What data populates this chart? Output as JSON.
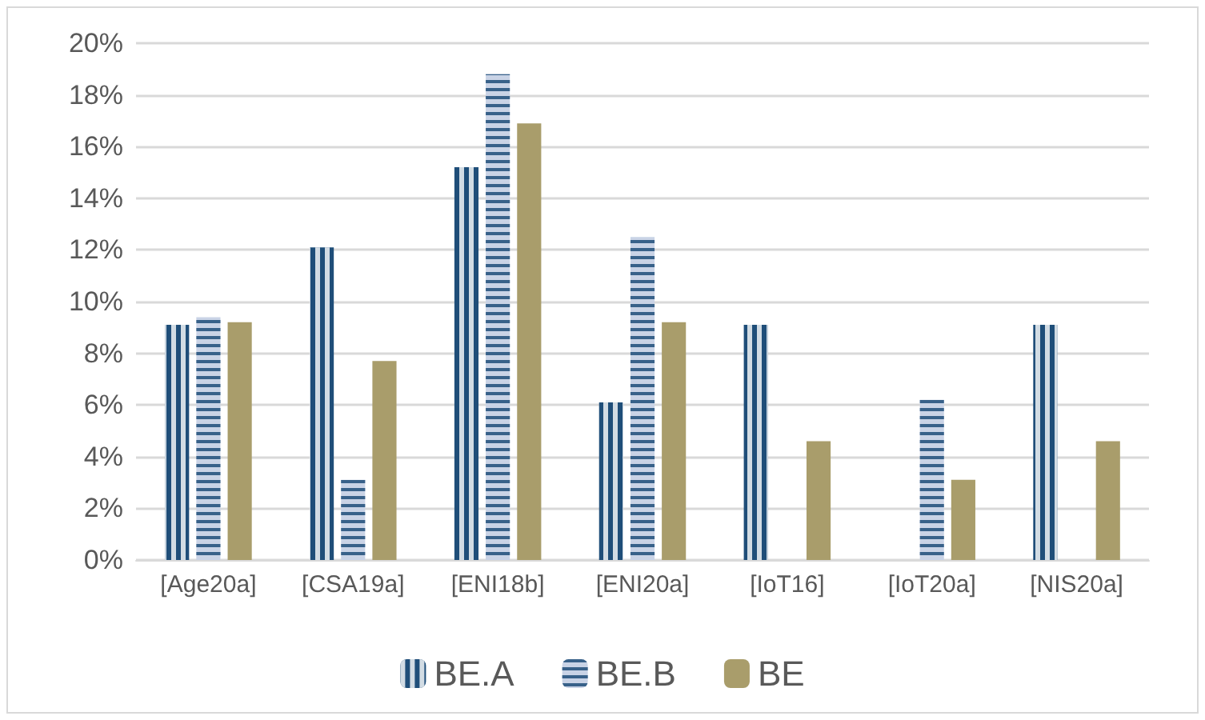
{
  "chart_data": {
    "type": "bar",
    "categories": [
      "[Age20a]",
      "[CSA19a]",
      "[ENI18b]",
      "[ENI20a]",
      "[IoT16]",
      "[IoT20a]",
      "[NIS20a]"
    ],
    "series": [
      {
        "name": "BE.A",
        "color": "#1f4e79",
        "values": [
          9.1,
          12.1,
          15.2,
          6.1,
          9.1,
          0,
          9.1
        ]
      },
      {
        "name": "BE.B",
        "color": "#c9d3e6",
        "values": [
          9.4,
          3.1,
          18.8,
          12.5,
          0,
          6.2,
          0
        ]
      },
      {
        "name": "BE",
        "color": "#a99d6b",
        "values": [
          9.2,
          7.7,
          16.9,
          9.2,
          4.6,
          3.1,
          4.6
        ]
      }
    ],
    "ylim": [
      0,
      20
    ],
    "yticks": [
      {
        "value": 0,
        "label": "0%"
      },
      {
        "value": 2,
        "label": "2%"
      },
      {
        "value": 4,
        "label": "4%"
      },
      {
        "value": 6,
        "label": "6%"
      },
      {
        "value": 8,
        "label": "8%"
      },
      {
        "value": 10,
        "label": "10%"
      },
      {
        "value": 12,
        "label": "12%"
      },
      {
        "value": 14,
        "label": "14%"
      },
      {
        "value": 16,
        "label": "16%"
      },
      {
        "value": 18,
        "label": "18%"
      },
      {
        "value": 20,
        "label": "20%"
      }
    ],
    "grid": "y",
    "legend": "bottom"
  }
}
